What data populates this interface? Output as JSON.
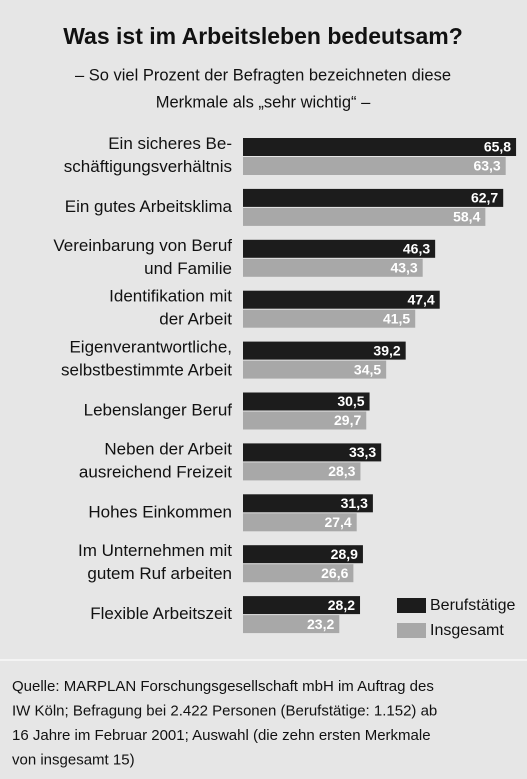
{
  "chart_data": {
    "type": "hbar",
    "title": "Was ist im Arbeitsleben bedeutsam?",
    "subtitle": [
      "– So viel Prozent der Befragten bezeichneten diese",
      "Merkmale als „sehr wichtig“ –"
    ],
    "categories": [
      "Ein sicheres Be-\nschäftigungsverhältnis",
      "Ein gutes Arbeitsklima",
      "Vereinbarung von Beruf\nund Familie",
      "Identifikation mit\nder Arbeit",
      "Eigenverantwortliche,\nselbstbestimmte Arbeit",
      "Lebenslanger Beruf",
      "Neben der Arbeit\nausreichend Freizeit",
      "Hohes Einkommen",
      "Im Unternehmen mit\ngutem Ruf arbeiten",
      "Flexible Arbeitszeit"
    ],
    "series": [
      {
        "name": "Berufstätige",
        "color": "#1c1c1c",
        "values": [
          65.8,
          62.7,
          46.3,
          47.4,
          39.2,
          30.5,
          33.3,
          31.3,
          28.9,
          28.2
        ],
        "value_labels": [
          "65,8",
          "62,7",
          "46,3",
          "47,4",
          "39,2",
          "30,5",
          "33,3",
          "31,3",
          "28,9",
          "28,2"
        ]
      },
      {
        "name": "Insgesamt",
        "color": "#a8a8a8",
        "values": [
          63.3,
          58.4,
          43.3,
          41.5,
          34.5,
          29.7,
          28.3,
          27.4,
          26.6,
          23.2
        ],
        "value_labels": [
          "63,3",
          "58,4",
          "43,3",
          "41,5",
          "34,5",
          "29,7",
          "28,3",
          "27,4",
          "26,6",
          "23,2"
        ]
      }
    ],
    "source": [
      "Quelle: MARPLAN Forschungsgesellschaft mbH im Auftrag des",
      "IW Köln; Befragung bei 2.422 Personen (Berufstätige: 1.152) ab",
      "16 Jahre im Februar 2001; Auswahl (die zehn ersten Merkmale",
      "von insgesamt 15)"
    ]
  }
}
